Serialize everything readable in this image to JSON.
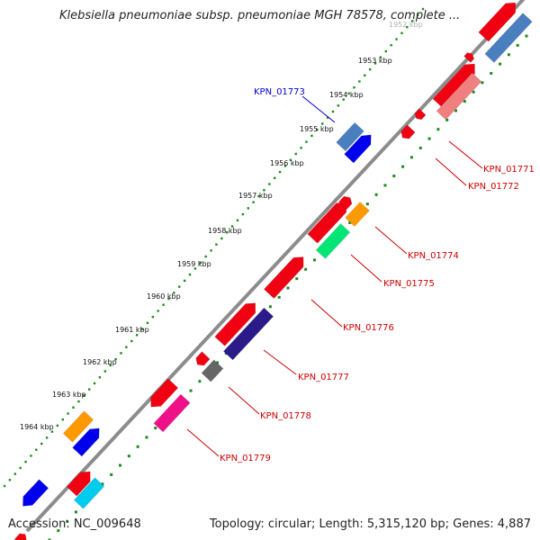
{
  "title": "Klebsiella pneumoniae subsp. pneumoniae MGH 78578, complete ...",
  "accession": "Accession: NC_009648",
  "summary": "Topology: circular; Length: 5,315,120 bp; Genes: 4,887",
  "colors": {
    "tick_dots": "#1f8a1f",
    "backbone": "#8c8c8c",
    "label_red": "#cc0000",
    "label_blue": "#0000cc"
  },
  "ticks": [
    {
      "label": "1952 kbp"
    },
    {
      "label": "1953 kbp"
    },
    {
      "label": "1954 kbp"
    },
    {
      "label": "1955 kbp"
    },
    {
      "label": "1956 kbp"
    },
    {
      "label": "1957 kbp"
    },
    {
      "label": "1958 kbp"
    },
    {
      "label": "1959 kbp"
    },
    {
      "label": "1960 kbp"
    },
    {
      "label": "1961 kbp"
    },
    {
      "label": "1962 kbp"
    },
    {
      "label": "1963 kbp"
    },
    {
      "label": "1964 kbp"
    }
  ],
  "gene_labels": [
    {
      "name": "KPN_01773",
      "color": "blue"
    },
    {
      "name": "KPN_01771",
      "color": "red"
    },
    {
      "name": "KPN_01772",
      "color": "red"
    },
    {
      "name": "KPN_01774",
      "color": "red"
    },
    {
      "name": "KPN_01775",
      "color": "red"
    },
    {
      "name": "KPN_01776",
      "color": "red"
    },
    {
      "name": "KPN_01777",
      "color": "red"
    },
    {
      "name": "KPN_01778",
      "color": "red"
    },
    {
      "name": "KPN_01779",
      "color": "red"
    }
  ]
}
